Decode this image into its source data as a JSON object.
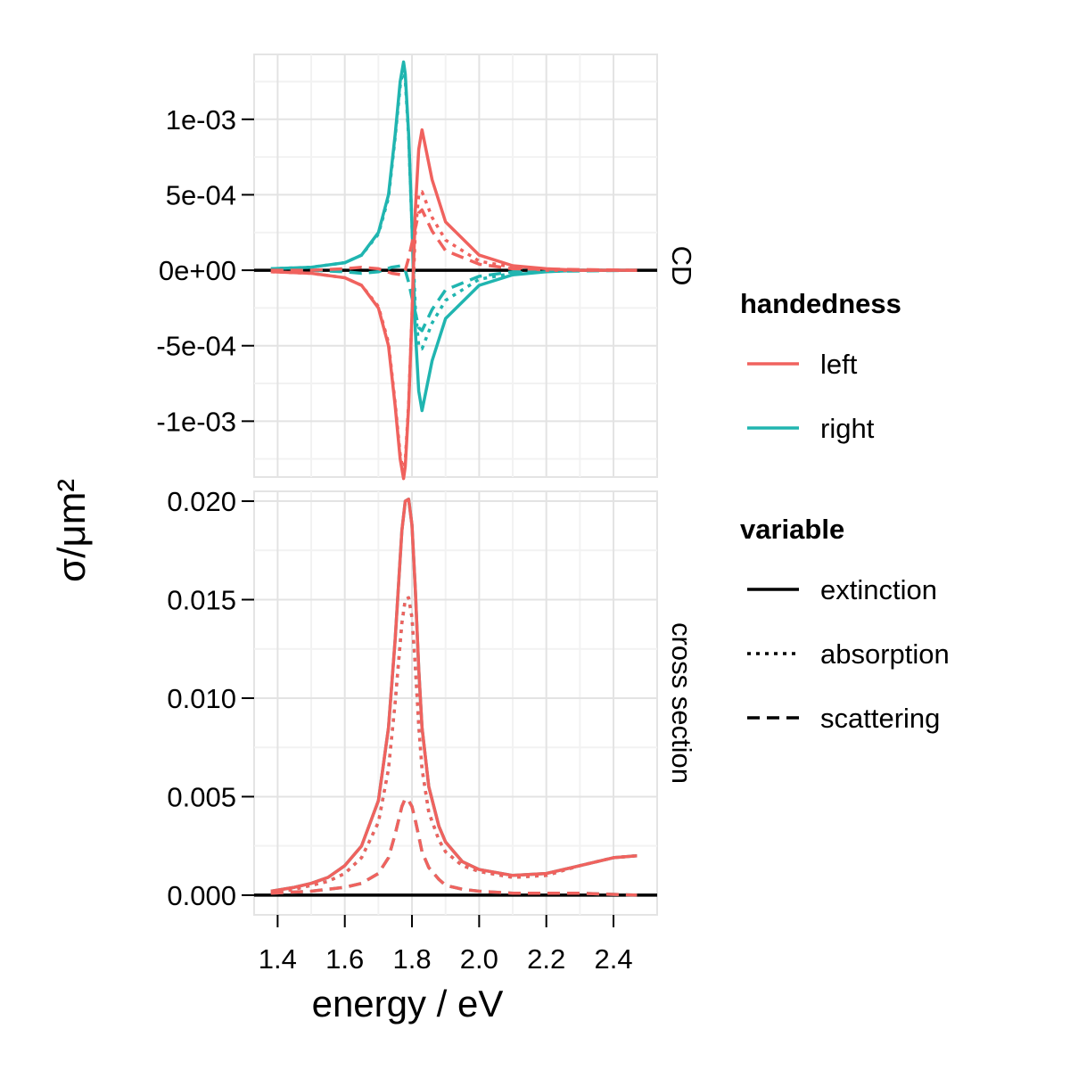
{
  "chart_data": {
    "type": "line",
    "xlabel": "energy / eV",
    "ylabel": "σ/μm²",
    "xlim": [
      1.33,
      2.53
    ],
    "xticks": [
      1.4,
      1.6,
      1.8,
      2.0,
      2.2,
      2.4
    ],
    "xtick_labels": [
      "1.4",
      "1.6",
      "1.8",
      "2.0",
      "2.2",
      "2.4"
    ],
    "grid": true,
    "legend_position": "right",
    "legends": [
      {
        "title": "handedness",
        "kind": "color",
        "entries": [
          {
            "label": "left",
            "color": "#f0625e"
          },
          {
            "label": "right",
            "color": "#20b5b0"
          }
        ]
      },
      {
        "title": "variable",
        "kind": "linetype",
        "entries": [
          {
            "label": "extinction",
            "dash": "solid"
          },
          {
            "label": "absorption",
            "dash": "dotted"
          },
          {
            "label": "scattering",
            "dash": "dashed"
          }
        ]
      }
    ],
    "colors": {
      "left": "#f0625e",
      "right": "#20b5b0",
      "reference": "#000000"
    },
    "panels": [
      {
        "strip_label": "CD",
        "ylim": [
          -0.00137,
          0.00143
        ],
        "yticks": [
          0.001,
          0.0005,
          0,
          -0.0005,
          -0.001
        ],
        "ytick_labels": [
          "1e-03",
          "5e-04",
          "0e+00",
          "-5e-04",
          "-1e-03"
        ],
        "reference_line": 0,
        "series": [
          {
            "handedness": "right",
            "variable": "extinction",
            "x": [
              1.38,
              1.5,
              1.6,
              1.65,
              1.7,
              1.73,
              1.75,
              1.765,
              1.775,
              1.78,
              1.79,
              1.8,
              1.81,
              1.82,
              1.83,
              1.86,
              1.9,
              2.0,
              2.1,
              2.2,
              2.3,
              2.47
            ],
            "y": [
              1e-05,
              2e-05,
              5e-05,
              0.0001,
              0.00025,
              0.0005,
              0.0009,
              0.00125,
              0.00138,
              0.0013,
              0.0009,
              0.0003,
              -0.0004,
              -0.0008,
              -0.00093,
              -0.0006,
              -0.00032,
              -0.0001,
              -3e-05,
              -1e-05,
              0,
              0
            ]
          },
          {
            "handedness": "right",
            "variable": "absorption",
            "x": [
              1.38,
              1.5,
              1.6,
              1.65,
              1.7,
              1.73,
              1.75,
              1.765,
              1.775,
              1.78,
              1.79,
              1.8,
              1.81,
              1.82,
              1.83,
              1.86,
              1.9,
              2.0,
              2.1,
              2.2,
              2.47
            ],
            "y": [
              1e-05,
              2e-05,
              5e-05,
              0.0001,
              0.00024,
              0.00048,
              0.00088,
              0.00122,
              0.00134,
              0.00126,
              0.00088,
              0.0003,
              -0.00025,
              -0.0005,
              -0.00052,
              -0.00035,
              -0.0002,
              -6e-05,
              -2e-05,
              0,
              0
            ]
          },
          {
            "handedness": "right",
            "variable": "scattering",
            "x": [
              1.38,
              1.5,
              1.6,
              1.65,
              1.7,
              1.74,
              1.77,
              1.78,
              1.79,
              1.8,
              1.81,
              1.82,
              1.83,
              1.86,
              1.9,
              2.0,
              2.1,
              2.47
            ],
            "y": [
              0,
              0,
              -1e-05,
              -2e-05,
              -1e-05,
              2e-05,
              3e-05,
              0,
              -8e-05,
              -0.00018,
              -0.00028,
              -0.00038,
              -0.0004,
              -0.00026,
              -0.00013,
              -4e-05,
              -1e-05,
              0
            ]
          },
          {
            "handedness": "left",
            "variable": "extinction",
            "x": [
              1.38,
              1.5,
              1.6,
              1.65,
              1.7,
              1.73,
              1.75,
              1.765,
              1.775,
              1.78,
              1.79,
              1.8,
              1.81,
              1.82,
              1.83,
              1.86,
              1.9,
              2.0,
              2.1,
              2.2,
              2.3,
              2.47
            ],
            "y": [
              -1e-05,
              -2e-05,
              -5e-05,
              -0.0001,
              -0.00025,
              -0.0005,
              -0.0009,
              -0.00125,
              -0.00138,
              -0.0013,
              -0.0009,
              -0.0003,
              0.0004,
              0.0008,
              0.00093,
              0.0006,
              0.00032,
              0.0001,
              3e-05,
              1e-05,
              0,
              0
            ]
          },
          {
            "handedness": "left",
            "variable": "absorption",
            "x": [
              1.38,
              1.5,
              1.6,
              1.65,
              1.7,
              1.73,
              1.75,
              1.765,
              1.775,
              1.78,
              1.79,
              1.8,
              1.81,
              1.82,
              1.83,
              1.86,
              1.9,
              2.0,
              2.1,
              2.2,
              2.47
            ],
            "y": [
              -1e-05,
              -2e-05,
              -5e-05,
              -0.0001,
              -0.00024,
              -0.00048,
              -0.00088,
              -0.00122,
              -0.00134,
              -0.00126,
              -0.00088,
              -0.0003,
              0.00025,
              0.0005,
              0.00052,
              0.00035,
              0.0002,
              6e-05,
              2e-05,
              0,
              0
            ]
          },
          {
            "handedness": "left",
            "variable": "scattering",
            "x": [
              1.38,
              1.5,
              1.6,
              1.65,
              1.7,
              1.74,
              1.77,
              1.78,
              1.79,
              1.8,
              1.81,
              1.82,
              1.83,
              1.86,
              1.9,
              2.0,
              2.1,
              2.47
            ],
            "y": [
              0,
              0,
              1e-05,
              2e-05,
              1e-05,
              -2e-05,
              -3e-05,
              0,
              8e-05,
              0.00018,
              0.00028,
              0.00038,
              0.0004,
              0.00026,
              0.00013,
              4e-05,
              1e-05,
              0
            ]
          }
        ]
      },
      {
        "strip_label": "cross section",
        "ylim": [
          -0.001,
          0.0205
        ],
        "yticks": [
          0.02,
          0.015,
          0.01,
          0.005,
          0
        ],
        "ytick_labels": [
          "0.020",
          "0.015",
          "0.010",
          "0.005",
          "0.000"
        ],
        "reference_line": 0,
        "series": [
          {
            "handedness": "right",
            "variable": "extinction",
            "x": [
              1.38,
              1.45,
              1.5,
              1.55,
              1.6,
              1.65,
              1.7,
              1.73,
              1.75,
              1.77,
              1.78,
              1.79,
              1.8,
              1.81,
              1.82,
              1.83,
              1.85,
              1.88,
              1.9,
              1.95,
              2.0,
              2.1,
              2.2,
              2.3,
              2.4,
              2.47
            ],
            "y": [
              0.0002,
              0.0004,
              0.0006,
              0.0009,
              0.0015,
              0.0025,
              0.0048,
              0.0085,
              0.013,
              0.0185,
              0.02,
              0.0201,
              0.0188,
              0.0155,
              0.0115,
              0.0085,
              0.0055,
              0.0035,
              0.0027,
              0.0017,
              0.0013,
              0.001,
              0.0011,
              0.0015,
              0.0019,
              0.002
            ]
          },
          {
            "handedness": "right",
            "variable": "absorption",
            "x": [
              1.38,
              1.45,
              1.5,
              1.55,
              1.6,
              1.65,
              1.7,
              1.73,
              1.75,
              1.77,
              1.78,
              1.79,
              1.8,
              1.81,
              1.82,
              1.83,
              1.85,
              1.88,
              1.9,
              1.95,
              2.0,
              2.1,
              2.2,
              2.3,
              2.4,
              2.47
            ],
            "y": [
              0.0001,
              0.0003,
              0.0005,
              0.0007,
              0.0011,
              0.0019,
              0.0037,
              0.0064,
              0.0098,
              0.0138,
              0.015,
              0.0151,
              0.0141,
              0.0116,
              0.0086,
              0.0064,
              0.0042,
              0.0028,
              0.0022,
              0.0015,
              0.0012,
              0.0009,
              0.001,
              0.0015,
              0.0019,
              0.002
            ]
          },
          {
            "handedness": "right",
            "variable": "scattering",
            "x": [
              1.38,
              1.5,
              1.6,
              1.65,
              1.7,
              1.73,
              1.75,
              1.77,
              1.78,
              1.79,
              1.8,
              1.81,
              1.82,
              1.83,
              1.85,
              1.88,
              1.9,
              1.95,
              2.0,
              2.1,
              2.2,
              2.3,
              2.47
            ],
            "y": [
              0.0001,
              0.0002,
              0.0004,
              0.0006,
              0.0011,
              0.0019,
              0.0031,
              0.0045,
              0.0049,
              0.0048,
              0.0045,
              0.0038,
              0.003,
              0.0022,
              0.0014,
              0.0008,
              0.0005,
              0.0003,
              0.0002,
              0.0001,
              0.0001,
              0.0001,
              0
            ]
          },
          {
            "handedness": "left",
            "variable": "extinction",
            "x": [
              1.38,
              1.45,
              1.5,
              1.55,
              1.6,
              1.65,
              1.7,
              1.73,
              1.75,
              1.77,
              1.78,
              1.79,
              1.8,
              1.81,
              1.82,
              1.83,
              1.85,
              1.88,
              1.9,
              1.95,
              2.0,
              2.1,
              2.2,
              2.3,
              2.4,
              2.47
            ],
            "y": [
              0.0002,
              0.0004,
              0.0006,
              0.0009,
              0.0015,
              0.0025,
              0.0048,
              0.0085,
              0.013,
              0.0185,
              0.02,
              0.0201,
              0.0188,
              0.0155,
              0.0115,
              0.0085,
              0.0055,
              0.0035,
              0.0027,
              0.0017,
              0.0013,
              0.001,
              0.0011,
              0.0015,
              0.0019,
              0.002
            ]
          },
          {
            "handedness": "left",
            "variable": "absorption",
            "x": [
              1.38,
              1.45,
              1.5,
              1.55,
              1.6,
              1.65,
              1.7,
              1.73,
              1.75,
              1.77,
              1.78,
              1.79,
              1.8,
              1.81,
              1.82,
              1.83,
              1.85,
              1.88,
              1.9,
              1.95,
              2.0,
              2.1,
              2.2,
              2.3,
              2.4,
              2.47
            ],
            "y": [
              0.0001,
              0.0003,
              0.0005,
              0.0007,
              0.0011,
              0.0019,
              0.0037,
              0.0064,
              0.0098,
              0.0138,
              0.015,
              0.0151,
              0.0141,
              0.0116,
              0.0086,
              0.0064,
              0.0042,
              0.0028,
              0.0022,
              0.0015,
              0.0012,
              0.0009,
              0.001,
              0.0015,
              0.0019,
              0.002
            ]
          },
          {
            "handedness": "left",
            "variable": "scattering",
            "x": [
              1.38,
              1.5,
              1.6,
              1.65,
              1.7,
              1.73,
              1.75,
              1.77,
              1.78,
              1.79,
              1.8,
              1.81,
              1.82,
              1.83,
              1.85,
              1.88,
              1.9,
              1.95,
              2.0,
              2.1,
              2.2,
              2.3,
              2.47
            ],
            "y": [
              0.0001,
              0.0002,
              0.0004,
              0.0006,
              0.0011,
              0.0019,
              0.0031,
              0.0045,
              0.0049,
              0.0048,
              0.0045,
              0.0038,
              0.003,
              0.0022,
              0.0014,
              0.0008,
              0.0005,
              0.0003,
              0.0002,
              0.0001,
              0.0001,
              0.0001,
              0
            ]
          }
        ]
      }
    ]
  }
}
